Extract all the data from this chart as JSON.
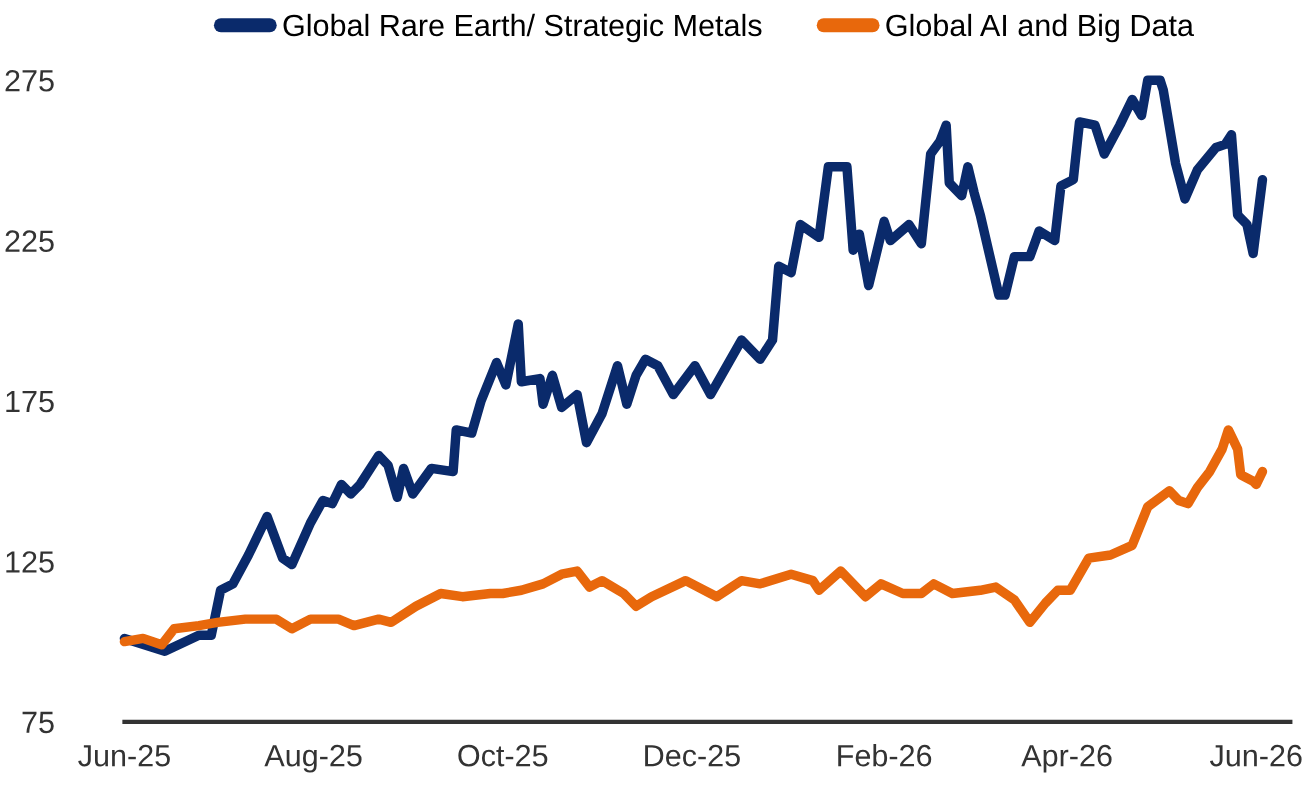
{
  "chart_data": {
    "type": "line",
    "xlim": [
      "2025-06-01",
      "2026-06-12"
    ],
    "xticks": [
      {
        "value": "2025-06-01",
        "label": "Jun-25"
      },
      {
        "value": "2025-08-01",
        "label": "Aug-25"
      },
      {
        "value": "2025-10-01",
        "label": "Oct-25"
      },
      {
        "value": "2025-12-01",
        "label": "Dec-25"
      },
      {
        "value": "2026-02-01",
        "label": "Feb-26"
      },
      {
        "value": "2026-04-01",
        "label": "Apr-26"
      },
      {
        "value": "2026-06-01",
        "label": "Jun-26"
      }
    ],
    "ylim": [
      75,
      275
    ],
    "yticks": [
      75,
      125,
      175,
      225,
      275
    ],
    "grid": false,
    "legend": "top",
    "marker": "none",
    "line_style": "solid",
    "series": [
      {
        "name": "Global Rare Earth/ Strategic Metals",
        "color": "#0a2a6b",
        "x": [
          "2025-06-01",
          "2025-06-14",
          "2025-06-25",
          "2025-06-29",
          "2025-07-02",
          "2025-07-06",
          "2025-07-11",
          "2025-07-17",
          "2025-07-22",
          "2025-07-25",
          "2025-07-31",
          "2025-08-04",
          "2025-08-07",
          "2025-08-10",
          "2025-08-13",
          "2025-08-16",
          "2025-08-22",
          "2025-08-25",
          "2025-08-28",
          "2025-08-30",
          "2025-09-02",
          "2025-09-08",
          "2025-09-15",
          "2025-09-16",
          "2025-09-21",
          "2025-09-24",
          "2025-09-29",
          "2025-10-02",
          "2025-10-06",
          "2025-10-07",
          "2025-10-13",
          "2025-10-14",
          "2025-10-17",
          "2025-10-20",
          "2025-10-25",
          "2025-10-28",
          "2025-11-02",
          "2025-11-07",
          "2025-11-10",
          "2025-11-13",
          "2025-11-16",
          "2025-11-20",
          "2025-11-25",
          "2025-12-02",
          "2025-12-07",
          "2025-12-17",
          "2025-12-23",
          "2025-12-27",
          "2025-12-29",
          "2026-01-02",
          "2026-01-05",
          "2026-01-11",
          "2026-01-14",
          "2026-01-20",
          "2026-01-22",
          "2026-01-24",
          "2026-01-27",
          "2026-02-01",
          "2026-02-03",
          "2026-02-09",
          "2026-02-13",
          "2026-02-16",
          "2026-02-19",
          "2026-02-21",
          "2026-02-22",
          "2026-02-26",
          "2026-02-28",
          "2026-03-02",
          "2026-03-04",
          "2026-03-10",
          "2026-03-12",
          "2026-03-15",
          "2026-03-20",
          "2026-03-23",
          "2026-03-28",
          "2026-03-30",
          "2026-04-03",
          "2026-04-05",
          "2026-04-10",
          "2026-04-13",
          "2026-04-18",
          "2026-04-22",
          "2026-04-25",
          "2026-04-27",
          "2026-05-01",
          "2026-05-02",
          "2026-05-06",
          "2026-05-09",
          "2026-05-13",
          "2026-05-19",
          "2026-05-22",
          "2026-05-24",
          "2026-05-26",
          "2026-05-29",
          "2026-05-31",
          "2026-06-03"
        ],
        "values": [
          101,
          97,
          102,
          102,
          116,
          118,
          127,
          139,
          126,
          124,
          137,
          144,
          143,
          149,
          146,
          149,
          158,
          155,
          145,
          154,
          146,
          154,
          153,
          166,
          165,
          175,
          187,
          180,
          199,
          181,
          182,
          174,
          183,
          173,
          177,
          162,
          171,
          186,
          174,
          183,
          188,
          186,
          177,
          186,
          177,
          194,
          188,
          194,
          217,
          215,
          230,
          226,
          248,
          248,
          222,
          227,
          211,
          231,
          225,
          230,
          224,
          252,
          256,
          261,
          243,
          239,
          248,
          240,
          233,
          208,
          208,
          220,
          220,
          228,
          225,
          242,
          244,
          262,
          261,
          252,
          261,
          269,
          264,
          275,
          275,
          272,
          249,
          238,
          247,
          254,
          255,
          258,
          233,
          230,
          221,
          244
        ]
      },
      {
        "name": "Global AI and Big Data",
        "color": "#e8680c",
        "x": [
          "2025-06-01",
          "2025-06-07",
          "2025-06-13",
          "2025-06-17",
          "2025-06-25",
          "2025-07-01",
          "2025-07-10",
          "2025-07-20",
          "2025-07-25",
          "2025-07-31",
          "2025-08-09",
          "2025-08-14",
          "2025-08-22",
          "2025-08-26",
          "2025-09-03",
          "2025-09-11",
          "2025-09-18",
          "2025-09-27",
          "2025-10-01",
          "2025-10-07",
          "2025-10-14",
          "2025-10-20",
          "2025-10-25",
          "2025-10-29",
          "2025-11-02",
          "2025-11-09",
          "2025-11-13",
          "2025-11-18",
          "2025-11-29",
          "2025-12-09",
          "2025-12-17",
          "2025-12-23",
          "2026-01-02",
          "2026-01-09",
          "2026-01-11",
          "2026-01-18",
          "2026-01-26",
          "2026-01-31",
          "2026-02-07",
          "2026-02-13",
          "2026-02-17",
          "2026-02-23",
          "2026-03-04",
          "2026-03-09",
          "2026-03-15",
          "2026-03-20",
          "2026-03-25",
          "2026-03-29",
          "2026-04-02",
          "2026-04-08",
          "2026-04-15",
          "2026-04-22",
          "2026-04-27",
          "2026-05-04",
          "2026-05-07",
          "2026-05-10",
          "2026-05-13",
          "2026-05-17",
          "2026-05-21",
          "2026-05-23",
          "2026-05-26",
          "2026-05-27",
          "2026-05-31",
          "2026-06-01",
          "2026-06-03"
        ],
        "values": [
          100,
          101,
          99,
          104,
          105,
          106,
          107,
          107,
          104,
          107,
          107,
          105,
          107,
          106,
          111,
          115,
          114,
          115,
          115,
          116,
          118,
          121,
          122,
          117,
          119,
          115,
          111,
          114,
          119,
          114,
          119,
          118,
          121,
          119,
          116,
          122,
          114,
          118,
          115,
          115,
          118,
          115,
          116,
          117,
          113,
          106,
          112,
          116,
          116,
          126,
          127,
          130,
          142,
          147,
          144,
          143,
          148,
          153,
          160,
          166,
          160,
          152,
          150,
          149,
          153
        ]
      }
    ]
  }
}
